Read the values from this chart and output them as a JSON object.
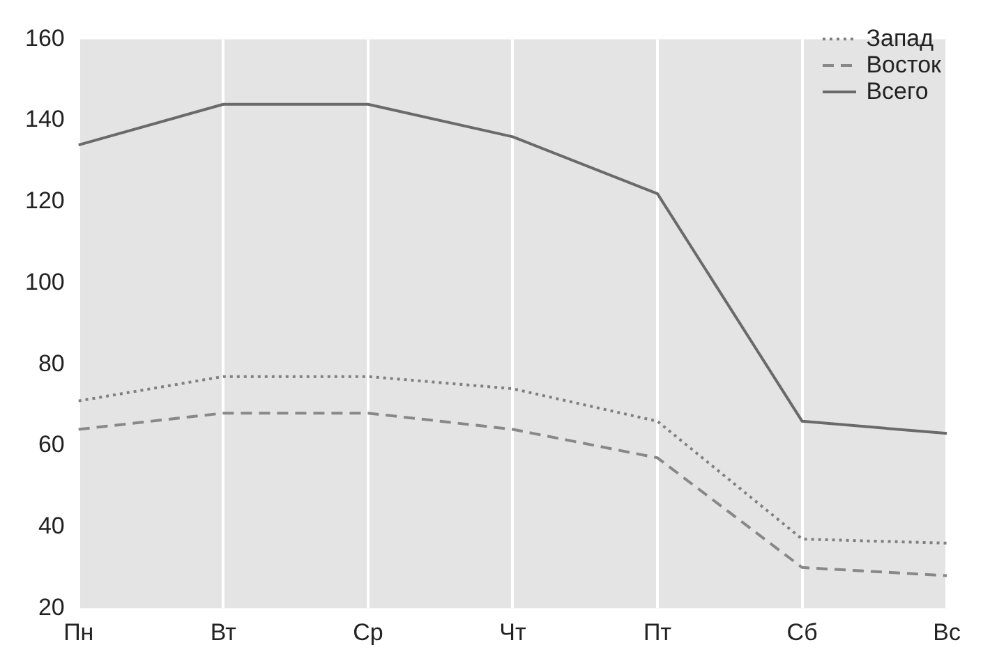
{
  "chart_data": {
    "type": "line",
    "categories": [
      "Пн",
      "Вт",
      "Ср",
      "Чт",
      "Пт",
      "Сб",
      "Вс"
    ],
    "series": [
      {
        "name": "Запад",
        "color": "#808080",
        "line_style": "dotted",
        "values": [
          71,
          77,
          77,
          74,
          66,
          37,
          36
        ]
      },
      {
        "name": "Восток",
        "color": "#888888",
        "line_style": "dashed",
        "values": [
          64,
          68,
          68,
          64,
          57,
          30,
          28
        ]
      },
      {
        "name": "Всего",
        "color": "#6a6a6a",
        "line_style": "solid",
        "values": [
          134,
          144,
          144,
          136,
          122,
          66,
          63
        ]
      }
    ],
    "ylim": [
      20,
      160
    ],
    "yticks": [
      20,
      40,
      60,
      80,
      100,
      120,
      140,
      160
    ],
    "grid": "x",
    "legend": "top right",
    "marker": "none"
  }
}
